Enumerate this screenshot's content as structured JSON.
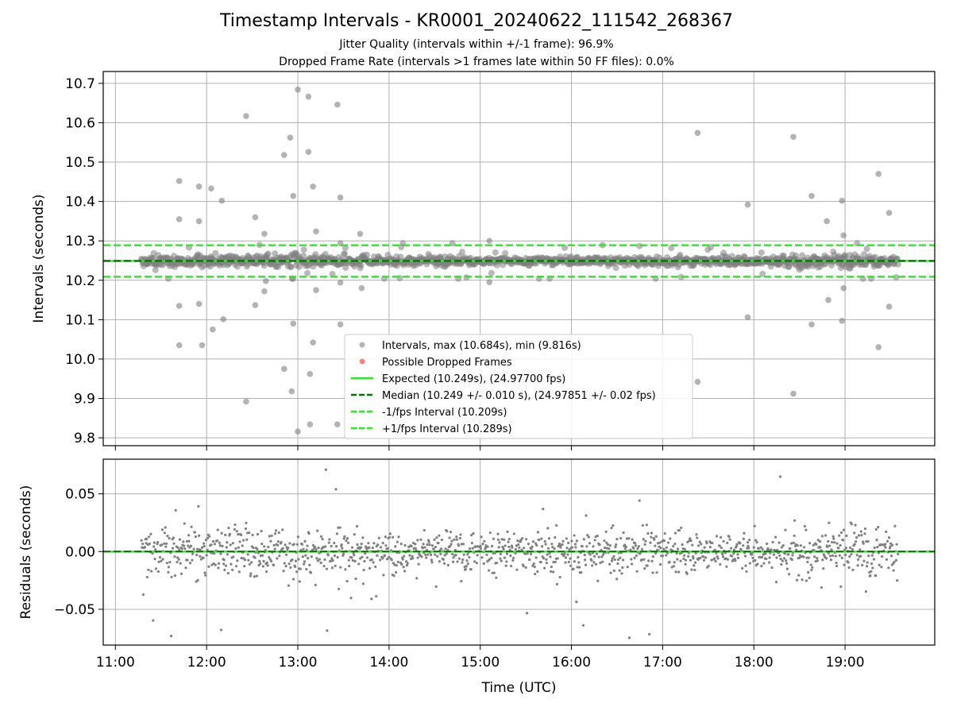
{
  "colors": {
    "intervals": "#808080",
    "dropped": "#ff3333",
    "expected": "#22ee22",
    "median": "#007700",
    "bounds": "#22ee22",
    "grid": "#b0b0b0"
  },
  "chart_data": [
    {
      "type": "scatter",
      "title": "Timestamp Intervals - KR0001_20240622_111542_268367",
      "subtitle": "Jitter Quality (intervals within +/-1 frame): 96.9%",
      "subtitle2": "Dropped Frame Rate (intervals >1 frames late within 50 FF files): 0.0%",
      "ylabel": "Intervals (seconds)",
      "xlim": [
        "10:52",
        "19:59"
      ],
      "ylim": [
        9.78,
        10.73
      ],
      "yticks": [
        "9.8",
        "9.9",
        "10.0",
        "10.1",
        "10.2",
        "10.3",
        "10.4",
        "10.5",
        "10.6",
        "10.7"
      ],
      "grid": true,
      "legend_position": "bottom-center",
      "lines": {
        "expected": 10.249,
        "median": 10.249,
        "minus_1_fps": 10.209,
        "plus_1_fps": 10.289
      },
      "legend": [
        "Intervals, max (10.684s), min (9.816s)",
        "Possible Dropped Frames",
        "Expected (10.249s), (24.97700 fps)",
        "Median (10.249 +/- 0.010 s), (24.97851 +/- 0.02 fps)",
        "-1/fps Interval (10.209s)",
        "+1/fps Interval (10.289s)"
      ],
      "outliers": [
        {
          "t": "11:42",
          "v": 10.452
        },
        {
          "t": "11:42",
          "v": 10.355
        },
        {
          "t": "11:42",
          "v": 10.135
        },
        {
          "t": "11:42",
          "v": 10.035
        },
        {
          "t": "11:55",
          "v": 10.438
        },
        {
          "t": "11:55",
          "v": 10.35
        },
        {
          "t": "11:55",
          "v": 10.14
        },
        {
          "t": "11:57",
          "v": 10.035
        },
        {
          "t": "12:03",
          "v": 10.433
        },
        {
          "t": "12:04",
          "v": 10.075
        },
        {
          "t": "12:10",
          "v": 10.402
        },
        {
          "t": "12:11",
          "v": 10.101
        },
        {
          "t": "12:26",
          "v": 10.617
        },
        {
          "t": "12:26",
          "v": 9.892
        },
        {
          "t": "12:32",
          "v": 10.36
        },
        {
          "t": "12:32",
          "v": 10.137
        },
        {
          "t": "12:38",
          "v": 10.318
        },
        {
          "t": "12:38",
          "v": 10.172
        },
        {
          "t": "12:39",
          "v": 10.198
        },
        {
          "t": "12:51",
          "v": 10.518
        },
        {
          "t": "12:51",
          "v": 9.975
        },
        {
          "t": "12:55",
          "v": 10.562
        },
        {
          "t": "12:56",
          "v": 9.918
        },
        {
          "t": "12:57",
          "v": 10.414
        },
        {
          "t": "12:57",
          "v": 10.09
        },
        {
          "t": "13:00",
          "v": 10.684
        },
        {
          "t": "13:00",
          "v": 9.816
        },
        {
          "t": "13:07",
          "v": 10.666
        },
        {
          "t": "13:07",
          "v": 10.526
        },
        {
          "t": "13:08",
          "v": 9.962
        },
        {
          "t": "13:08",
          "v": 9.834
        },
        {
          "t": "13:10",
          "v": 10.438
        },
        {
          "t": "13:10",
          "v": 10.042
        },
        {
          "t": "13:12",
          "v": 10.324
        },
        {
          "t": "13:12",
          "v": 10.175
        },
        {
          "t": "13:26",
          "v": 10.646
        },
        {
          "t": "13:26",
          "v": 9.834
        },
        {
          "t": "13:28",
          "v": 10.41
        },
        {
          "t": "13:28",
          "v": 10.088
        },
        {
          "t": "13:28",
          "v": 10.294
        },
        {
          "t": "13:28",
          "v": 10.194
        },
        {
          "t": "13:41",
          "v": 10.318
        },
        {
          "t": "13:42",
          "v": 10.18
        },
        {
          "t": "15:06",
          "v": 10.3
        },
        {
          "t": "15:06",
          "v": 10.195
        },
        {
          "t": "17:23",
          "v": 10.574
        },
        {
          "t": "17:23",
          "v": 9.942
        },
        {
          "t": "17:56",
          "v": 10.392
        },
        {
          "t": "17:56",
          "v": 10.106
        },
        {
          "t": "18:26",
          "v": 10.564
        },
        {
          "t": "18:26",
          "v": 9.912
        },
        {
          "t": "18:38",
          "v": 10.414
        },
        {
          "t": "18:38",
          "v": 10.088
        },
        {
          "t": "18:48",
          "v": 10.35
        },
        {
          "t": "18:49",
          "v": 10.15
        },
        {
          "t": "18:58",
          "v": 10.402
        },
        {
          "t": "18:58",
          "v": 10.097
        },
        {
          "t": "18:59",
          "v": 10.314
        },
        {
          "t": "18:59",
          "v": 10.18
        },
        {
          "t": "19:22",
          "v": 10.47
        },
        {
          "t": "19:22",
          "v": 10.03
        },
        {
          "t": "19:29",
          "v": 10.371
        },
        {
          "t": "19:29",
          "v": 10.133
        }
      ]
    },
    {
      "type": "scatter",
      "xlabel": "Time (UTC)",
      "ylabel": "Residuals (seconds)",
      "xticks": [
        "11:00",
        "12:00",
        "13:00",
        "14:00",
        "15:00",
        "16:00",
        "17:00",
        "18:00",
        "19:00"
      ],
      "ylim": [
        -0.081,
        0.08
      ],
      "yticks": [
        "−0.05",
        "0.00",
        "0.05"
      ],
      "grid": true,
      "lines": {
        "expected": 0.0,
        "median": 0.0
      }
    }
  ]
}
